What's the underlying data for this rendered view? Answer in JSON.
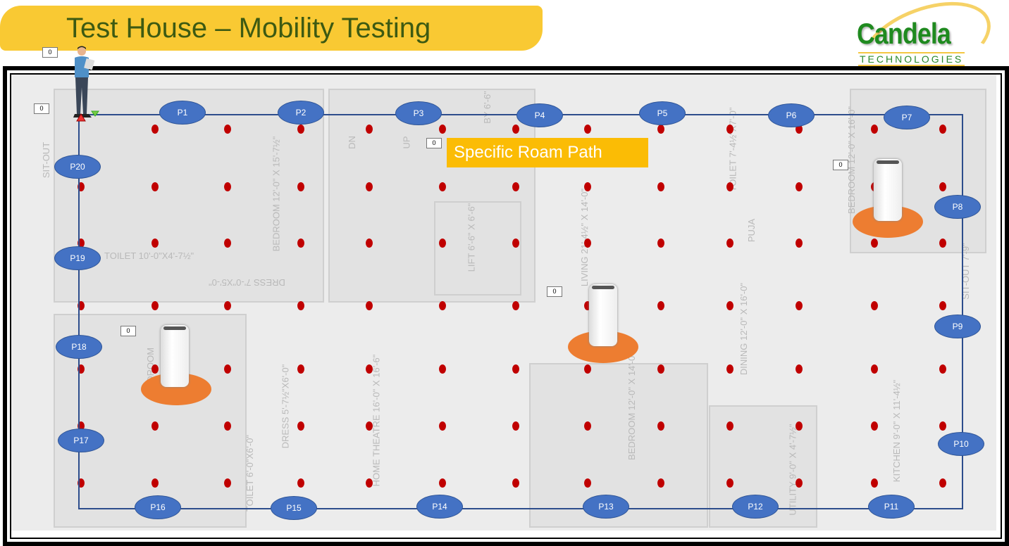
{
  "slide": {
    "title": "Test House – Mobility Testing",
    "callout": "Specific Roam Path"
  },
  "logo": {
    "name": "Candela",
    "tagline": "TECHNOLOGIES"
  },
  "waypoints": [
    "P1",
    "P2",
    "P3",
    "P4",
    "P5",
    "P6",
    "P7",
    "P8",
    "P9",
    "P10",
    "P11",
    "P12",
    "P13",
    "P14",
    "P15",
    "P16",
    "P17",
    "P18",
    "P19",
    "P20"
  ],
  "counters": [
    "0",
    "0",
    "0",
    "0",
    "0",
    "0"
  ],
  "rooms": {
    "sitout_left": "SIT-OUT",
    "bedroom1": "BEDROOM 12'-0\" X 15'-7½\"",
    "dn": "DN",
    "up": "UP",
    "lobby": "BY 6'-6\"",
    "lift": "LIFT 6'-6\" X 6'-6\"",
    "living": "LIVING 21'-4½\" X 14'-0\"",
    "toilet1": "TOILET 7'-4½\"X7'-0\"",
    "puja": "PUJA",
    "bedroom2": "BEDROOM 12'-0\" X 16'-0\"",
    "toilet2": "TOILET 10'-0\"X4'-7½\"",
    "dress1": "DRESS 7'-0\"X5'-0\"",
    "bedroom3": "BEDROOM",
    "home_theatre": "HOME THEATRE 16'-0\" X 16'-6\"",
    "bedroom4": "BEDROOM 12'-0\" X 14'-0\"",
    "dining": "DINING 12'-0\" X 16'-0\"",
    "kitchen": "KITCHEN 9'-0\" X 11'-4½\"",
    "utility": "UTILITY 9'-0\" X 4'-7½\"",
    "sitout_right": "SIT-OUT 7'-9\"",
    "dress2": "DRESS 5'-7½\"X6'-0\"",
    "toilet3": "TOILET 6'-0\"X6'-0\""
  },
  "colors": {
    "banner": "#f9c933",
    "waypoint": "#4472c4",
    "path": "#2d4d8c",
    "measure_point": "#c00000",
    "router_pad": "#ed7d31",
    "callout": "#fbbc05"
  }
}
